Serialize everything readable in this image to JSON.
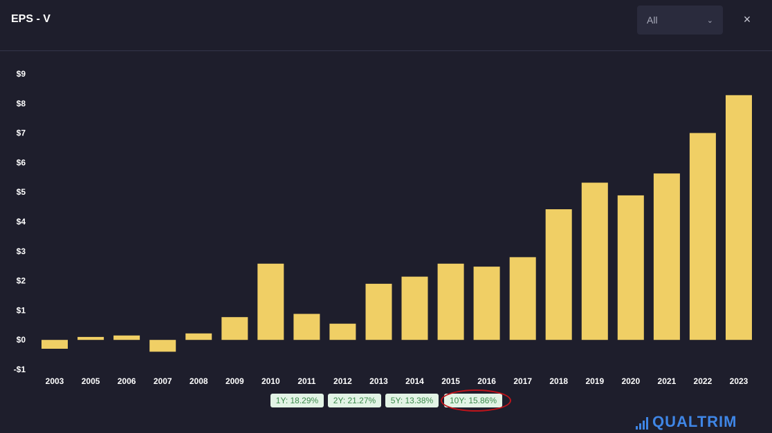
{
  "header": {
    "title": "EPS - V",
    "range_selected": "All",
    "close_label": "×"
  },
  "chart_data": {
    "type": "bar",
    "title": "EPS - V",
    "categories": [
      "2003",
      "2005",
      "2006",
      "2007",
      "2008",
      "2009",
      "2010",
      "2011",
      "2012",
      "2013",
      "2014",
      "2015",
      "2016",
      "2017",
      "2018",
      "2019",
      "2020",
      "2021",
      "2022",
      "2023"
    ],
    "values": [
      -0.3,
      0.1,
      0.15,
      -0.4,
      0.22,
      0.77,
      2.58,
      0.88,
      0.55,
      1.9,
      2.14,
      2.58,
      2.48,
      2.8,
      4.42,
      5.32,
      4.89,
      5.63,
      7.0,
      8.28
    ],
    "ylim": [
      -1,
      9
    ],
    "yticks": [
      -1,
      0,
      1,
      2,
      3,
      4,
      5,
      6,
      7,
      8,
      9
    ],
    "ytick_labels": [
      "-$1",
      "$0",
      "$1",
      "$2",
      "$3",
      "$4",
      "$5",
      "$6",
      "$7",
      "$8",
      "$9"
    ],
    "xlabel": "",
    "ylabel": "",
    "grid": false,
    "bar_color": "#f0cf65"
  },
  "growth_chips": [
    {
      "label": "1Y: 18.29%",
      "highlighted": false
    },
    {
      "label": "2Y: 21.27%",
      "highlighted": false
    },
    {
      "label": "5Y: 13.38%",
      "highlighted": false
    },
    {
      "label": "10Y: 15.86%",
      "highlighted": true
    }
  ],
  "brand": {
    "name": "QUALTRIM",
    "color": "#3f86e6"
  }
}
